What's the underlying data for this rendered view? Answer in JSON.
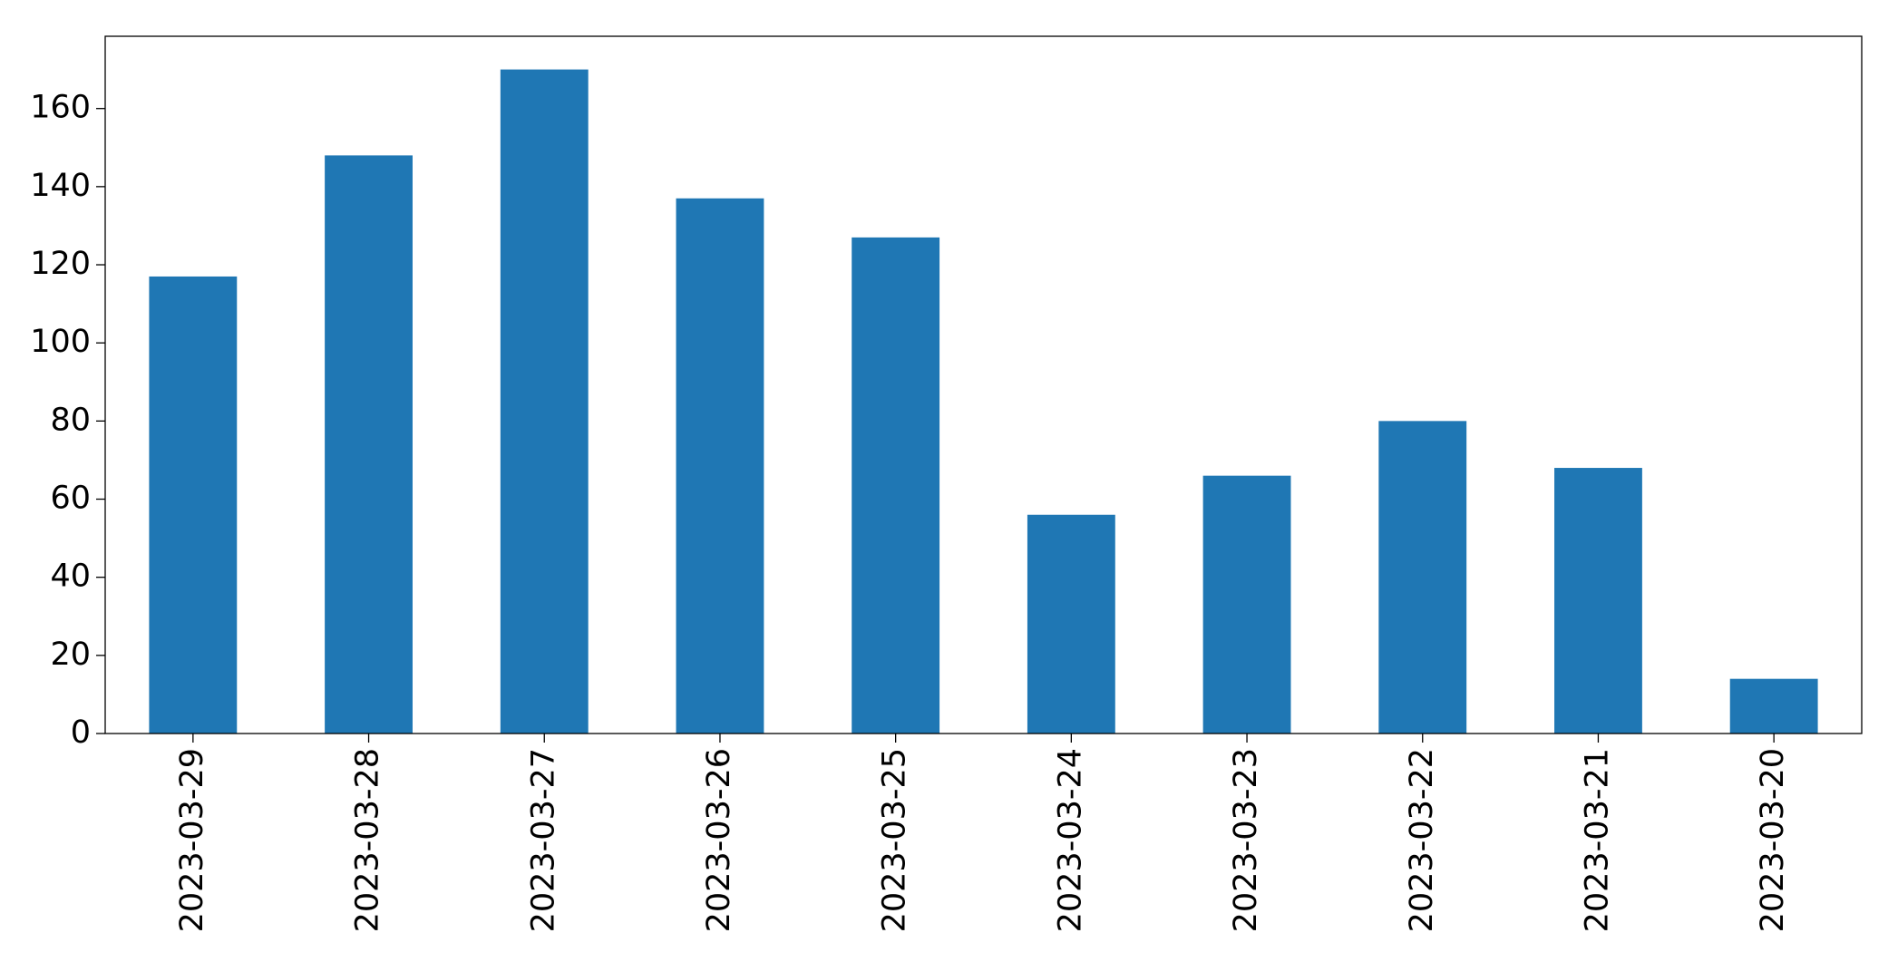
{
  "chart_data": {
    "type": "bar",
    "categories": [
      "2023-03-29",
      "2023-03-28",
      "2023-03-27",
      "2023-03-26",
      "2023-03-25",
      "2023-03-24",
      "2023-03-23",
      "2023-03-22",
      "2023-03-21",
      "2023-03-20"
    ],
    "values": [
      117,
      148,
      170,
      137,
      127,
      56,
      66,
      80,
      68,
      14
    ],
    "color": "#1f77b4",
    "ylim": [
      0,
      178.5
    ],
    "yticks": [
      0,
      20,
      40,
      60,
      80,
      100,
      120,
      140,
      160
    ],
    "grid": false
  }
}
